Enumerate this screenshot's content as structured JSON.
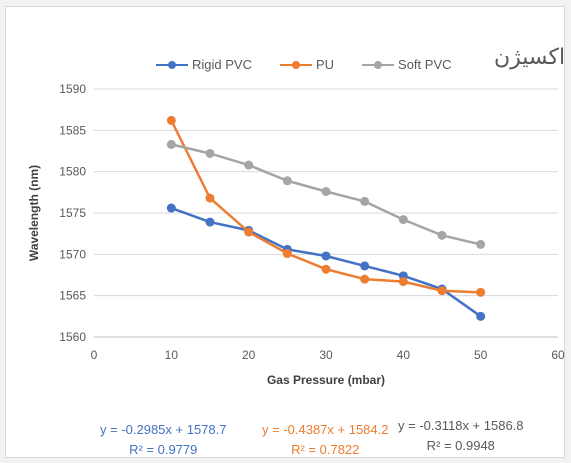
{
  "chart_data": {
    "type": "line",
    "title": "اکسیژن",
    "xlabel": "Gas Pressure (mbar)",
    "ylabel": "Wavelength (nm)",
    "xlim": [
      0,
      60
    ],
    "ylim": [
      1560,
      1590
    ],
    "xticks": [
      0,
      10,
      20,
      30,
      40,
      50,
      60
    ],
    "yticks": [
      1560,
      1565,
      1570,
      1575,
      1580,
      1585,
      1590
    ],
    "grid": true,
    "legend_position": "top",
    "x": [
      10,
      15,
      20,
      25,
      30,
      35,
      40,
      45,
      50
    ],
    "series": [
      {
        "name": "Rigid PVC",
        "color": "#4472c4",
        "values": [
          1575.6,
          1573.9,
          1572.9,
          1570.6,
          1569.8,
          1568.6,
          1567.4,
          1565.8,
          1562.5
        ]
      },
      {
        "name": "PU",
        "color": "#ed7d31",
        "values": [
          1586.2,
          1576.8,
          1572.7,
          1570.1,
          1568.2,
          1567.0,
          1566.7,
          1565.6,
          1565.4
        ]
      },
      {
        "name": "Soft PVC",
        "color": "#a5a5a5",
        "values": [
          1583.3,
          1582.2,
          1580.8,
          1578.9,
          1577.6,
          1576.4,
          1574.2,
          1572.3,
          1571.2
        ]
      }
    ],
    "equations": [
      {
        "eq": "y = -0.2985x + 1578.7",
        "r2": "R² = 0.9779",
        "color": "#4472c4"
      },
      {
        "eq": "y = -0.4387x + 1584.2",
        "r2": "R² = 0.7822",
        "color": "#ed7d31"
      },
      {
        "eq": "y = -0.3118x + 1586.8",
        "r2": "R² = 0.9948",
        "color": "#595959"
      }
    ]
  }
}
